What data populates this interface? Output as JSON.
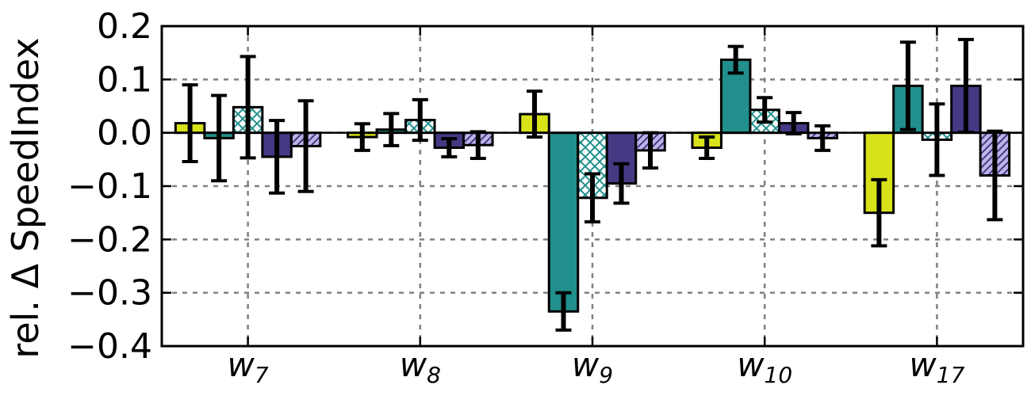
{
  "chart_data": {
    "type": "bar",
    "ylabel": "rel. Δ SpeedIndex",
    "ylim": [
      -0.4,
      0.2
    ],
    "yticks": [
      "−0.4",
      "−0.3",
      "−0.2",
      "−0.1",
      "0.0",
      "0.1",
      "0.2"
    ],
    "ytick_values": [
      -0.4,
      -0.3,
      -0.2,
      -0.1,
      0.0,
      0.1,
      0.2
    ],
    "grid": true,
    "categories": [
      {
        "base": "w",
        "sub": "7"
      },
      {
        "base": "w",
        "sub": "8"
      },
      {
        "base": "w",
        "sub": "9"
      },
      {
        "base": "w",
        "sub": "10"
      },
      {
        "base": "w",
        "sub": "17"
      }
    ],
    "series": [
      {
        "color": "#d8e219",
        "hatch": "none",
        "values": [
          0.018,
          -0.008,
          0.035,
          -0.028,
          -0.15
        ],
        "errors": [
          0.072,
          0.025,
          0.043,
          0.02,
          0.062
        ]
      },
      {
        "color": "#21908d",
        "hatch": "none",
        "values": [
          -0.01,
          0.006,
          -0.335,
          0.137,
          0.088
        ],
        "errors": [
          0.08,
          0.03,
          0.035,
          0.025,
          0.082
        ]
      },
      {
        "color": "#21908d",
        "hatch": "cross",
        "values": [
          0.048,
          0.024,
          -0.122,
          0.043,
          -0.013
        ],
        "errors": [
          0.095,
          0.038,
          0.045,
          0.023,
          0.067
        ]
      },
      {
        "color": "#443983",
        "hatch": "none",
        "values": [
          -0.045,
          -0.028,
          -0.095,
          0.018,
          0.088
        ],
        "errors": [
          0.068,
          0.017,
          0.037,
          0.02,
          0.087
        ]
      },
      {
        "color": "#bbb5e8",
        "hatch": "diagonal",
        "values": [
          -0.025,
          -0.023,
          -0.033,
          -0.01,
          -0.08
        ],
        "errors": [
          0.085,
          0.025,
          0.033,
          0.023,
          0.083
        ]
      }
    ]
  }
}
